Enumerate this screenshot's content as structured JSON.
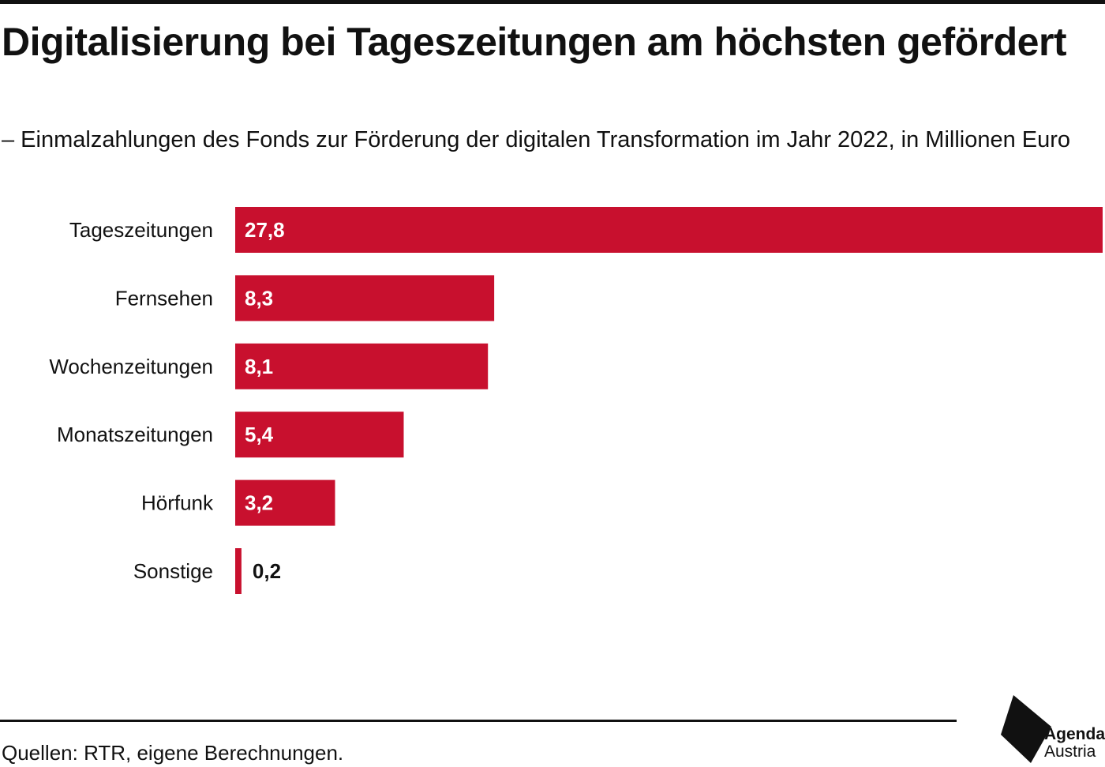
{
  "header": {
    "title": "Digitalisierung bei Tageszeitungen am höchsten gefördert",
    "subtitle": "– Einmalzahlungen des Fonds zur Förderung der digitalen Transformation im Jahr 2022, in Millionen Euro"
  },
  "chart_data": {
    "type": "bar",
    "orientation": "horizontal",
    "title": "Digitalisierung bei Tageszeitungen am höchsten gefördert",
    "subtitle": "– Einmalzahlungen des Fonds zur Förderung der digitalen Transformation im Jahr 2022, in Millionen Euro",
    "categories": [
      "Tageszeitungen",
      "Fernsehen",
      "Wochenzeitungen",
      "Monatszeitungen",
      "Hörfunk",
      "Sonstige"
    ],
    "values": [
      27.8,
      8.3,
      8.1,
      5.4,
      3.2,
      0.2
    ],
    "value_labels": [
      "27,8",
      "8,3",
      "8,1",
      "5,4",
      "3,2",
      "0,2"
    ],
    "xlim": [
      0,
      27.8
    ],
    "xlabel": "",
    "ylabel": "",
    "grid": false,
    "legend": "none",
    "bar_color": "#c8102e"
  },
  "footer": {
    "source": "Quellen: RTR, eigene Berechnungen."
  },
  "logo": {
    "line1": "Agenda",
    "line2": "Austria",
    "icon": "agenda-austria-logo-icon"
  },
  "colors": {
    "bar": "#c8102e",
    "text": "#111111",
    "rule": "#111111"
  }
}
